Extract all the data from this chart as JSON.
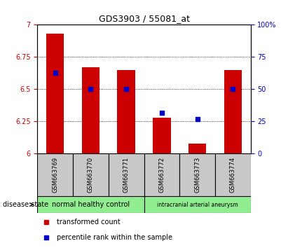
{
  "title": "GDS3903 / 55081_at",
  "samples": [
    "GSM663769",
    "GSM663770",
    "GSM663771",
    "GSM663772",
    "GSM663773",
    "GSM663774"
  ],
  "transformed_count": [
    6.93,
    6.67,
    6.65,
    6.28,
    6.08,
    6.65
  ],
  "percentile_rank": [
    63,
    50,
    50,
    32,
    27,
    50
  ],
  "bar_bottom": 6.0,
  "ylim_left": [
    6.0,
    7.0
  ],
  "ylim_right": [
    0,
    100
  ],
  "yticks_left": [
    6.0,
    6.25,
    6.5,
    6.75,
    7.0
  ],
  "ytick_labels_left": [
    "6",
    "6.25",
    "6.5",
    "6.75",
    "7"
  ],
  "yticks_right": [
    0,
    25,
    50,
    75,
    100
  ],
  "ytick_labels_right": [
    "0",
    "25",
    "50",
    "75",
    "100%"
  ],
  "group1_label": "normal healthy control",
  "group2_label": "intracranial arterial aneurysm",
  "group_color": "#90EE90",
  "sample_box_color": "#C8C8C8",
  "bar_color": "#CC0000",
  "dot_color": "#0000CC",
  "left_tick_color": "#CC0000",
  "right_tick_color": "#0000CC",
  "bar_width": 0.5,
  "disease_state_label": "disease state",
  "legend_label_bar": "transformed count",
  "legend_label_dot": "percentile rank within the sample",
  "title_fontsize": 9,
  "tick_fontsize": 7,
  "label_fontsize": 7,
  "sample_fontsize": 6,
  "group_fontsize": 7,
  "legend_fontsize": 7
}
